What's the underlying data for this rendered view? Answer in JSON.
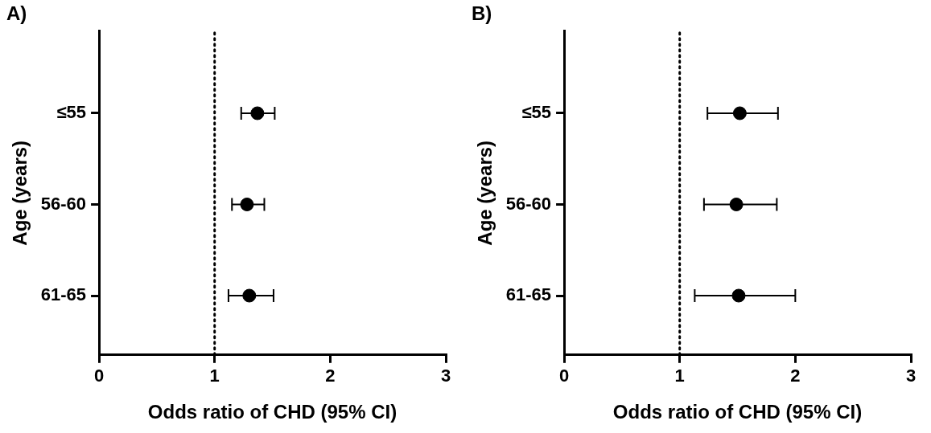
{
  "chart_data": [
    {
      "type": "scatter",
      "title": "A)",
      "xlabel": "Odds ratio of CHD (95% CI)",
      "ylabel": "Age (years)",
      "orientation": "horizontal",
      "categories": [
        "≤55",
        "56-60",
        "61-65"
      ],
      "series": [
        {
          "color": "#000000",
          "values": [
            1.37,
            1.28,
            1.3
          ],
          "errors": [
            [
              1.23,
              1.52
            ],
            [
              1.15,
              1.43
            ],
            [
              1.12,
              1.51
            ]
          ]
        }
      ],
      "xlim": [
        0,
        3
      ],
      "xticks": [
        0,
        1,
        2,
        3
      ],
      "ref_lines": [
        {
          "axis": "x",
          "value": 1,
          "line_style": "dotted",
          "color": "#000000"
        }
      ],
      "grid": false,
      "legend": false,
      "marker": "circle"
    },
    {
      "type": "scatter",
      "title": "B)",
      "xlabel": "Odds ratio of CHD (95% CI)",
      "ylabel": "Age (years)",
      "orientation": "horizontal",
      "categories": [
        "≤55",
        "56-60",
        "61-65"
      ],
      "series": [
        {
          "color": "#000000",
          "values": [
            1.52,
            1.49,
            1.51
          ],
          "errors": [
            [
              1.24,
              1.85
            ],
            [
              1.21,
              1.84
            ],
            [
              1.13,
              2.0
            ]
          ]
        }
      ],
      "xlim": [
        0,
        3
      ],
      "xticks": [
        0,
        1,
        2,
        3
      ],
      "ref_lines": [
        {
          "axis": "x",
          "value": 1,
          "line_style": "dotted",
          "color": "#000000"
        }
      ],
      "grid": false,
      "legend": false,
      "marker": "circle"
    }
  ]
}
